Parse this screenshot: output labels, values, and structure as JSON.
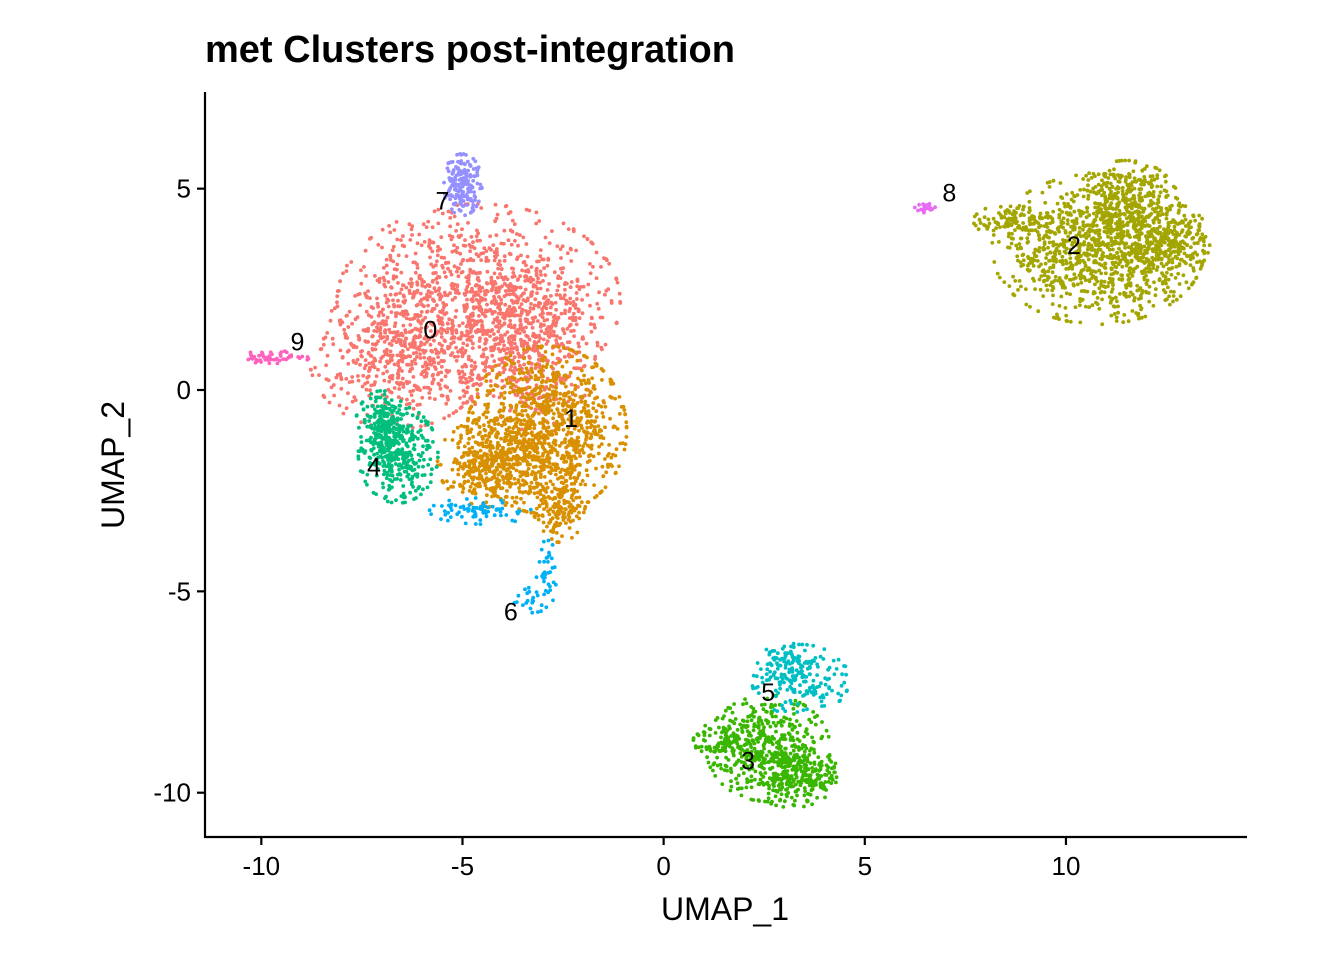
{
  "chart_data": {
    "type": "scatter",
    "title": "met Clusters post-integration",
    "xlabel": "UMAP_1",
    "ylabel": "UMAP_2",
    "xlim": [
      -11.4,
      14.5
    ],
    "ylim": [
      -11.1,
      7.4
    ],
    "xticks": [
      -10,
      -5,
      0,
      5,
      10
    ],
    "xtick_labels": [
      "-10",
      "-5",
      "0",
      "5",
      "10"
    ],
    "yticks": [
      -10,
      -5,
      0,
      5
    ],
    "ytick_labels": [
      "-10",
      "-5",
      "0",
      "5"
    ],
    "grid": false,
    "legend": "none",
    "clusters": [
      {
        "name": "0",
        "color": "#F8766D",
        "label_pos": [
          -5.8,
          1.5
        ],
        "n": 1900,
        "blobs": [
          {
            "cx": -4.6,
            "cy": 2.2,
            "sx": 1.6,
            "sy": 1.1
          },
          {
            "cx": -6.6,
            "cy": 0.8,
            "sx": 1.0,
            "sy": 0.8
          },
          {
            "cx": -3.4,
            "cy": 1.0,
            "sx": 0.8,
            "sy": 0.9
          }
        ]
      },
      {
        "name": "1",
        "color": "#D89000",
        "label_pos": [
          -2.3,
          -0.7
        ],
        "n": 1500,
        "blobs": [
          {
            "cx": -2.9,
            "cy": -1.0,
            "sx": 0.9,
            "sy": 0.95
          },
          {
            "cx": -4.3,
            "cy": -1.8,
            "sx": 0.6,
            "sy": 0.5
          },
          {
            "cx": -2.6,
            "cy": -2.9,
            "sx": 0.3,
            "sy": 0.4
          }
        ]
      },
      {
        "name": "2",
        "color": "#A3A500",
        "label_pos": [
          10.2,
          3.6
        ],
        "n": 1600,
        "blobs": [
          {
            "cx": 10.8,
            "cy": 3.5,
            "sx": 1.2,
            "sy": 0.85
          },
          {
            "cx": 11.5,
            "cy": 4.6,
            "sx": 0.6,
            "sy": 0.5
          },
          {
            "cx": 12.7,
            "cy": 3.7,
            "sx": 0.4,
            "sy": 0.4
          },
          {
            "cx": 8.8,
            "cy": 4.2,
            "sx": 0.5,
            "sy": 0.2
          }
        ]
      },
      {
        "name": "3",
        "color": "#39B600",
        "label_pos": [
          2.1,
          -9.2
        ],
        "n": 750,
        "blobs": [
          {
            "cx": 2.6,
            "cy": -8.9,
            "sx": 0.7,
            "sy": 0.6
          },
          {
            "cx": 3.2,
            "cy": -9.6,
            "sx": 0.5,
            "sy": 0.35
          },
          {
            "cx": 4.0,
            "cy": -9.6,
            "sx": 0.2,
            "sy": 0.2
          },
          {
            "cx": 1.4,
            "cy": -8.7,
            "sx": 0.3,
            "sy": 0.2
          }
        ]
      },
      {
        "name": "4",
        "color": "#00BF7D",
        "label_pos": [
          -7.2,
          -1.9
        ],
        "n": 500,
        "blobs": [
          {
            "cx": -6.6,
            "cy": -1.6,
            "sx": 0.45,
            "sy": 0.55
          },
          {
            "cx": -7.0,
            "cy": -0.9,
            "sx": 0.3,
            "sy": 0.4
          }
        ]
      },
      {
        "name": "5",
        "color": "#00BFC4",
        "label_pos": [
          2.6,
          -7.5
        ],
        "n": 220,
        "blobs": [
          {
            "cx": 3.4,
            "cy": -7.2,
            "sx": 0.55,
            "sy": 0.4
          },
          {
            "cx": 3.0,
            "cy": -6.7,
            "sx": 0.25,
            "sy": 0.2
          }
        ]
      },
      {
        "name": "6",
        "color": "#00B0F6",
        "label_pos": [
          -3.8,
          -5.5
        ],
        "n": 130,
        "blobs": [
          {
            "cx": -3.3,
            "cy": -5.2,
            "sx": 0.25,
            "sy": 0.15
          },
          {
            "cx": -2.9,
            "cy": -4.5,
            "sx": 0.12,
            "sy": 0.35
          },
          {
            "cx": -4.5,
            "cy": -3.0,
            "sx": 0.6,
            "sy": 0.15
          }
        ]
      },
      {
        "name": "7",
        "color": "#9590FF",
        "label_pos": [
          -5.5,
          4.7
        ],
        "n": 170,
        "blobs": [
          {
            "cx": -5.0,
            "cy": 5.1,
            "sx": 0.22,
            "sy": 0.35
          }
        ]
      },
      {
        "name": "8",
        "color": "#E76BF3",
        "label_pos": [
          7.1,
          4.9
        ],
        "n": 28,
        "blobs": [
          {
            "cx": 6.5,
            "cy": 4.5,
            "sx": 0.12,
            "sy": 0.06
          }
        ]
      },
      {
        "name": "9",
        "color": "#FF62BC",
        "label_pos": [
          -9.1,
          1.2
        ],
        "n": 50,
        "blobs": [
          {
            "cx": -9.7,
            "cy": 0.8,
            "sx": 0.4,
            "sy": 0.08
          }
        ]
      }
    ]
  }
}
